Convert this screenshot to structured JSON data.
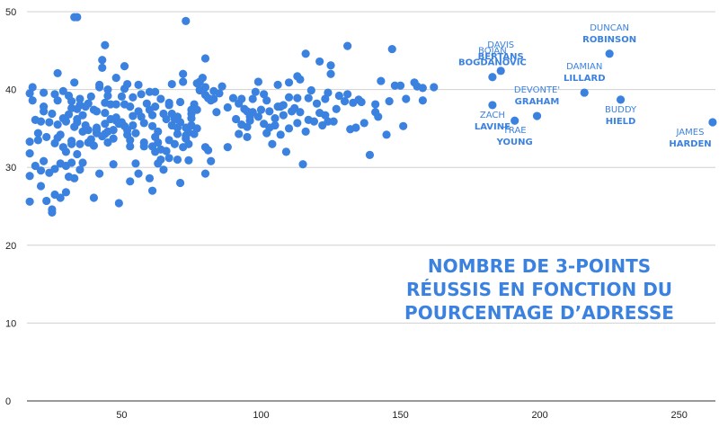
{
  "chart_data": {
    "type": "scatter",
    "title": "",
    "annotation_lines": [
      "NOMBRE DE 3-POINTS",
      "RÉUSSIS EN FONCTION DU",
      "POURCENTAGE D’ADRESSE"
    ],
    "xlabel": "",
    "ylabel": "",
    "xlim": [
      16,
      263
    ],
    "ylim": [
      0,
      50
    ],
    "x_ticks": [
      50,
      100,
      150,
      200,
      250
    ],
    "y_ticks": [
      0,
      10,
      20,
      30,
      40,
      50
    ],
    "grid": "horizontal",
    "color": "#3b82e0",
    "labeled_points": [
      {
        "first": "BOJAN",
        "last": "BOGDANOVIC",
        "x": 183,
        "y": 41.6,
        "pos": "above"
      },
      {
        "first": "DAVIS",
        "last": "BERTANS",
        "x": 186,
        "y": 42.4,
        "pos": "above"
      },
      {
        "first": "ZACH",
        "last": "LAVINE",
        "x": 183,
        "y": 38.0,
        "pos": "below"
      },
      {
        "first": "DEVONTE'",
        "last": "GRAHAM",
        "x": 199,
        "y": 36.6,
        "pos": "above"
      },
      {
        "first": "TRAE",
        "last": "YOUNG",
        "x": 191,
        "y": 36.0,
        "pos": "below"
      },
      {
        "first": "DAMIAN",
        "last": "LILLARD",
        "x": 216,
        "y": 39.6,
        "pos": "above"
      },
      {
        "first": "DUNCAN",
        "last": "ROBINSON",
        "x": 225,
        "y": 44.6,
        "pos": "above"
      },
      {
        "first": "BUDDY",
        "last": "HIELD",
        "x": 229,
        "y": 38.7,
        "pos": "below"
      },
      {
        "first": "JAMES",
        "last": "HARDEN",
        "x": 262,
        "y": 35.8,
        "pos": "below"
      }
    ],
    "points": [
      [
        17,
        25.6
      ],
      [
        17,
        28.9
      ],
      [
        17,
        31.8
      ],
      [
        17,
        33.3
      ],
      [
        17,
        39.5
      ],
      [
        18,
        40.3
      ],
      [
        18,
        38.6
      ],
      [
        19,
        36.1
      ],
      [
        19,
        30.2
      ],
      [
        20,
        33.5
      ],
      [
        20,
        34.4
      ],
      [
        21,
        29.6
      ],
      [
        21,
        27.6
      ],
      [
        21,
        35.9
      ],
      [
        22,
        37.8
      ],
      [
        22,
        37.2
      ],
      [
        22,
        39.6
      ],
      [
        22,
        30.8
      ],
      [
        23,
        25.7
      ],
      [
        23,
        33.9
      ],
      [
        24,
        35.8
      ],
      [
        24,
        29.3
      ],
      [
        25,
        24.2
      ],
      [
        25,
        36.9
      ],
      [
        25,
        24.6
      ],
      [
        26,
        33.1
      ],
      [
        26,
        39.4
      ],
      [
        26,
        26.5
      ],
      [
        26,
        29.8
      ],
      [
        27,
        35.5
      ],
      [
        27,
        33.8
      ],
      [
        27,
        42.1
      ],
      [
        27,
        38.6
      ],
      [
        28,
        30.5
      ],
      [
        28,
        26.1
      ],
      [
        28,
        34.2
      ],
      [
        29,
        32.6
      ],
      [
        29,
        36.3
      ],
      [
        29,
        39.8
      ],
      [
        30,
        30.2
      ],
      [
        30,
        32.0
      ],
      [
        30,
        26.8
      ],
      [
        30,
        35.9
      ],
      [
        31,
        36.8
      ],
      [
        31,
        39.2
      ],
      [
        31,
        28.8
      ],
      [
        32,
        33.4
      ],
      [
        32,
        38.5
      ],
      [
        32,
        37.6
      ],
      [
        32,
        33.0
      ],
      [
        32,
        30.6
      ],
      [
        33,
        35.2
      ],
      [
        33,
        28.6
      ],
      [
        33,
        40.9
      ],
      [
        33,
        49.3
      ],
      [
        34,
        49.3
      ],
      [
        34,
        37.5
      ],
      [
        34,
        31.7
      ],
      [
        34,
        36.2
      ],
      [
        34,
        35.8
      ],
      [
        35,
        33.0
      ],
      [
        35,
        38.0
      ],
      [
        35,
        38.8
      ],
      [
        35,
        29.7
      ],
      [
        36,
        30.6
      ],
      [
        36,
        34.6
      ],
      [
        36,
        36.7
      ],
      [
        37,
        35.4
      ],
      [
        37,
        37.8
      ],
      [
        38,
        34.8
      ],
      [
        38,
        33.2
      ],
      [
        38,
        38.2
      ],
      [
        39,
        39.1
      ],
      [
        39,
        33.6
      ],
      [
        40,
        37.4
      ],
      [
        40,
        32.8
      ],
      [
        40,
        26.1
      ],
      [
        41,
        34.8
      ],
      [
        41,
        34.4
      ],
      [
        41,
        35.1
      ],
      [
        41,
        37.2
      ],
      [
        42,
        40.6
      ],
      [
        42,
        40.3
      ],
      [
        42,
        29.2
      ],
      [
        43,
        34.0
      ],
      [
        43,
        42.8
      ],
      [
        43,
        43.8
      ],
      [
        44,
        37.0
      ],
      [
        44,
        38.3
      ],
      [
        44,
        34.3
      ],
      [
        44,
        45.7
      ],
      [
        44,
        35.6
      ],
      [
        45,
        39.2
      ],
      [
        45,
        40.0
      ],
      [
        45,
        34.6
      ],
      [
        45,
        33.2
      ],
      [
        46,
        36.2
      ],
      [
        46,
        38.1
      ],
      [
        47,
        33.7
      ],
      [
        47,
        34.8
      ],
      [
        47,
        30.4
      ],
      [
        48,
        36.0
      ],
      [
        48,
        36.4
      ],
      [
        48,
        38.1
      ],
      [
        48,
        41.5
      ],
      [
        49,
        25.4
      ],
      [
        49,
        35.6
      ],
      [
        50,
        35.8
      ],
      [
        50,
        39.1
      ],
      [
        51,
        40.1
      ],
      [
        51,
        35.3
      ],
      [
        51,
        43.0
      ],
      [
        51,
        38.1
      ],
      [
        52,
        40.7
      ],
      [
        52,
        34.8
      ],
      [
        52,
        34.2
      ],
      [
        53,
        33.5
      ],
      [
        53,
        32.7
      ],
      [
        53,
        28.2
      ],
      [
        53,
        37.8
      ],
      [
        54,
        39.0
      ],
      [
        54,
        36.6
      ],
      [
        54,
        35.4
      ],
      [
        55,
        30.5
      ],
      [
        55,
        34.4
      ],
      [
        56,
        29.2
      ],
      [
        56,
        37.2
      ],
      [
        56,
        40.6
      ],
      [
        57,
        39.4
      ],
      [
        57,
        36.5
      ],
      [
        58,
        33.2
      ],
      [
        58,
        32.7
      ],
      [
        58,
        35.7
      ],
      [
        59,
        38.2
      ],
      [
        60,
        28.6
      ],
      [
        60,
        37.4
      ],
      [
        60,
        39.7
      ],
      [
        61,
        27.0
      ],
      [
        61,
        32.7
      ],
      [
        61,
        36.7
      ],
      [
        61,
        35.3
      ],
      [
        62,
        33.9
      ],
      [
        62,
        32.0
      ],
      [
        62,
        39.7
      ],
      [
        62,
        37.8
      ],
      [
        63,
        30.5
      ],
      [
        63,
        33.2
      ],
      [
        63,
        34.6
      ],
      [
        64,
        31.0
      ],
      [
        64,
        38.8
      ],
      [
        64,
        32.3
      ],
      [
        65,
        36.9
      ],
      [
        65,
        29.7
      ],
      [
        66,
        32.1
      ],
      [
        66,
        36.2
      ],
      [
        67,
        38.0
      ],
      [
        67,
        31.2
      ],
      [
        67,
        33.5
      ],
      [
        67,
        38.3
      ],
      [
        68,
        35.4
      ],
      [
        68,
        36.9
      ],
      [
        68,
        40.7
      ],
      [
        69,
        33.0
      ],
      [
        69,
        36.2
      ],
      [
        70,
        31.0
      ],
      [
        70,
        35.1
      ],
      [
        70,
        36.5
      ],
      [
        70,
        34.3
      ],
      [
        71,
        28.0
      ],
      [
        71,
        35.8
      ],
      [
        71,
        38.4
      ],
      [
        72,
        42.0
      ],
      [
        72,
        41.0
      ],
      [
        72,
        32.6
      ],
      [
        73,
        48.8
      ],
      [
        73,
        35.1
      ],
      [
        73,
        34.1
      ],
      [
        73,
        33.7
      ],
      [
        74,
        33.0
      ],
      [
        74,
        34.5
      ],
      [
        74,
        30.9
      ],
      [
        75,
        36.9
      ],
      [
        75,
        37.4
      ],
      [
        75,
        35.4
      ],
      [
        75,
        36.3
      ],
      [
        76,
        38.1
      ],
      [
        76,
        34.3
      ],
      [
        77,
        40.8
      ],
      [
        77,
        35.0
      ],
      [
        77,
        37.4
      ],
      [
        78,
        40.0
      ],
      [
        78,
        39.9
      ],
      [
        78,
        41.0
      ],
      [
        79,
        41.5
      ],
      [
        80,
        32.6
      ],
      [
        80,
        40.3
      ],
      [
        80,
        29.2
      ],
      [
        80,
        39.3
      ],
      [
        80,
        44.0
      ],
      [
        81,
        32.2
      ],
      [
        81,
        38.9
      ],
      [
        82,
        38.6
      ],
      [
        82,
        30.8
      ],
      [
        83,
        39.8
      ],
      [
        83,
        38.8
      ],
      [
        84,
        37.1
      ],
      [
        85,
        39.5
      ],
      [
        86,
        40.4
      ],
      [
        88,
        32.6
      ],
      [
        88,
        37.7
      ],
      [
        90,
        38.9
      ],
      [
        91,
        36.2
      ],
      [
        92,
        34.3
      ],
      [
        92,
        38.2
      ],
      [
        93,
        38.8
      ],
      [
        93,
        35.5
      ],
      [
        94,
        37.5
      ],
      [
        95,
        35.2
      ],
      [
        95,
        37.2
      ],
      [
        95,
        33.9
      ],
      [
        96,
        36.0
      ],
      [
        96,
        36.5
      ],
      [
        97,
        38.8
      ],
      [
        97,
        37.1
      ],
      [
        98,
        39.7
      ],
      [
        99,
        41.0
      ],
      [
        99,
        36.5
      ],
      [
        100,
        37.4
      ],
      [
        101,
        35.6
      ],
      [
        101,
        39.4
      ],
      [
        102,
        34.4
      ],
      [
        102,
        38.6
      ],
      [
        103,
        35.1
      ],
      [
        103,
        37.2
      ],
      [
        104,
        33.0
      ],
      [
        105,
        36.3
      ],
      [
        105,
        35.4
      ],
      [
        106,
        40.6
      ],
      [
        106,
        37.8
      ],
      [
        107,
        34.2
      ],
      [
        107,
        37.8
      ],
      [
        108,
        38.0
      ],
      [
        108,
        36.7
      ],
      [
        109,
        32.0
      ],
      [
        110,
        40.9
      ],
      [
        110,
        39.0
      ],
      [
        110,
        35.0
      ],
      [
        111,
        37.2
      ],
      [
        112,
        37.6
      ],
      [
        113,
        35.7
      ],
      [
        113,
        38.9
      ],
      [
        113,
        41.7
      ],
      [
        114,
        37.1
      ],
      [
        114,
        41.3
      ],
      [
        115,
        30.4
      ],
      [
        116,
        34.6
      ],
      [
        116,
        44.6
      ],
      [
        117,
        36.1
      ],
      [
        117,
        38.9
      ],
      [
        118,
        39.9
      ],
      [
        119,
        35.9
      ],
      [
        120,
        38.2
      ],
      [
        121,
        37.0
      ],
      [
        121,
        43.6
      ],
      [
        122,
        35.4
      ],
      [
        123,
        36.7
      ],
      [
        123,
        38.8
      ],
      [
        124,
        35.9
      ],
      [
        124,
        39.6
      ],
      [
        125,
        42.0
      ],
      [
        125,
        43.1
      ],
      [
        126,
        35.9
      ],
      [
        127,
        37.5
      ],
      [
        128,
        39.2
      ],
      [
        130,
        38.5
      ],
      [
        131,
        39.4
      ],
      [
        131,
        45.6
      ],
      [
        132,
        34.9
      ],
      [
        133,
        38.3
      ],
      [
        134,
        35.1
      ],
      [
        135,
        38.7
      ],
      [
        136,
        38.4
      ],
      [
        137,
        35.7
      ],
      [
        139,
        31.6
      ],
      [
        141,
        38.1
      ],
      [
        141,
        37.1
      ],
      [
        142,
        36.5
      ],
      [
        143,
        41.1
      ],
      [
        145,
        34.2
      ],
      [
        146,
        38.5
      ],
      [
        147,
        45.2
      ],
      [
        148,
        40.5
      ],
      [
        150,
        40.5
      ],
      [
        151,
        35.3
      ],
      [
        152,
        38.8
      ],
      [
        155,
        40.9
      ],
      [
        156,
        40.4
      ],
      [
        158,
        38.6
      ],
      [
        158,
        40.2
      ],
      [
        162,
        40.3
      ]
    ]
  }
}
